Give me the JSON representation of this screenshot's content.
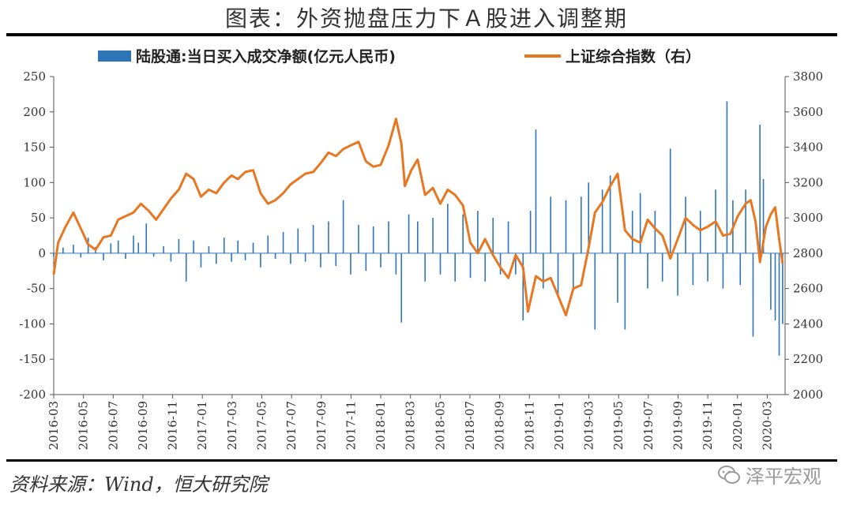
{
  "header": {
    "title": "图表：外资抛盘压力下Ａ股进入调整期"
  },
  "footer": {
    "source": "资料来源：Wind，恒大研究院",
    "watermark": "泽平宏观"
  },
  "chart_data": {
    "type": "bar",
    "title": "",
    "legend": {
      "placement": "top",
      "entries": [
        "陆股通:当日买入成交净额(亿元人民币)",
        "上证综合指数（右）"
      ]
    },
    "left_axis": {
      "ylim": [
        -200,
        250
      ],
      "ticks": [
        250,
        200,
        150,
        100,
        50,
        0,
        -50,
        -100,
        -150,
        -200
      ]
    },
    "right_axis": {
      "ylim": [
        2000,
        3800
      ],
      "ticks": [
        3800,
        3600,
        3400,
        3200,
        3000,
        2800,
        2600,
        2400,
        2200,
        2000
      ]
    },
    "x_ticks": [
      "2016-03",
      "2016-05",
      "2016-07",
      "2016-09",
      "2016-11",
      "2017-01",
      "2017-03",
      "2017-05",
      "2017-07",
      "2017-09",
      "2017-11",
      "2018-01",
      "2018-03",
      "2018-05",
      "2018-07",
      "2018-09",
      "2018-11",
      "2019-01",
      "2019-03",
      "2019-05",
      "2019-07",
      "2019-09",
      "2019-11",
      "2020-01",
      "2020-03"
    ],
    "series": [
      {
        "name": "陆股通:当日买入成交净额(亿元人民币)",
        "type": "bar",
        "axis": "left",
        "color": "#2e75b6",
        "points": [
          [
            "2016-03-01",
            -5
          ],
          [
            "2016-03-20",
            8
          ],
          [
            "2016-04-10",
            12
          ],
          [
            "2016-04-25",
            -6
          ],
          [
            "2016-05-10",
            22
          ],
          [
            "2016-05-25",
            9
          ],
          [
            "2016-06-10",
            -10
          ],
          [
            "2016-06-25",
            14
          ],
          [
            "2016-07-10",
            18
          ],
          [
            "2016-07-25",
            -8
          ],
          [
            "2016-08-10",
            25
          ],
          [
            "2016-08-20",
            15
          ],
          [
            "2016-09-05",
            42
          ],
          [
            "2016-09-20",
            -5
          ],
          [
            "2016-10-10",
            10
          ],
          [
            "2016-10-25",
            -12
          ],
          [
            "2016-11-10",
            20
          ],
          [
            "2016-11-25",
            -40
          ],
          [
            "2016-12-10",
            18
          ],
          [
            "2016-12-25",
            -20
          ],
          [
            "2017-01-10",
            10
          ],
          [
            "2017-01-25",
            -15
          ],
          [
            "2017-02-10",
            22
          ],
          [
            "2017-02-25",
            -12
          ],
          [
            "2017-03-10",
            18
          ],
          [
            "2017-03-25",
            -10
          ],
          [
            "2017-04-10",
            15
          ],
          [
            "2017-04-25",
            -20
          ],
          [
            "2017-05-10",
            25
          ],
          [
            "2017-05-25",
            -8
          ],
          [
            "2017-06-10",
            30
          ],
          [
            "2017-06-25",
            -15
          ],
          [
            "2017-07-10",
            35
          ],
          [
            "2017-07-25",
            -12
          ],
          [
            "2017-08-10",
            40
          ],
          [
            "2017-08-25",
            -20
          ],
          [
            "2017-09-10",
            45
          ],
          [
            "2017-09-25",
            -18
          ],
          [
            "2017-10-10",
            75
          ],
          [
            "2017-10-25",
            -30
          ],
          [
            "2017-11-10",
            40
          ],
          [
            "2017-11-25",
            -25
          ],
          [
            "2017-12-10",
            38
          ],
          [
            "2017-12-25",
            -20
          ],
          [
            "2018-01-10",
            45
          ],
          [
            "2018-01-25",
            -30
          ],
          [
            "2018-02-05",
            -98
          ],
          [
            "2018-02-20",
            55
          ],
          [
            "2018-03-10",
            45
          ],
          [
            "2018-03-25",
            -40
          ],
          [
            "2018-04-10",
            50
          ],
          [
            "2018-04-25",
            -30
          ],
          [
            "2018-05-10",
            70
          ],
          [
            "2018-05-25",
            -40
          ],
          [
            "2018-06-10",
            55
          ],
          [
            "2018-06-25",
            -35
          ],
          [
            "2018-07-10",
            60
          ],
          [
            "2018-07-25",
            -40
          ],
          [
            "2018-08-10",
            50
          ],
          [
            "2018-08-25",
            -30
          ],
          [
            "2018-09-10",
            45
          ],
          [
            "2018-09-25",
            -30
          ],
          [
            "2018-10-10",
            -95
          ],
          [
            "2018-10-25",
            60
          ],
          [
            "2018-11-05",
            175
          ],
          [
            "2018-11-20",
            -50
          ],
          [
            "2018-12-05",
            80
          ],
          [
            "2018-12-20",
            -60
          ],
          [
            "2019-01-05",
            75
          ],
          [
            "2019-01-20",
            -50
          ],
          [
            "2019-02-05",
            80
          ],
          [
            "2019-02-20",
            100
          ],
          [
            "2019-03-05",
            -108
          ],
          [
            "2019-03-20",
            90
          ],
          [
            "2019-04-05",
            110
          ],
          [
            "2019-04-20",
            -70
          ],
          [
            "2019-05-05",
            -108
          ],
          [
            "2019-05-20",
            60
          ],
          [
            "2019-06-05",
            85
          ],
          [
            "2019-06-20",
            -50
          ],
          [
            "2019-07-05",
            60
          ],
          [
            "2019-07-20",
            -40
          ],
          [
            "2019-08-05",
            148
          ],
          [
            "2019-08-20",
            -60
          ],
          [
            "2019-09-05",
            80
          ],
          [
            "2019-09-20",
            -45
          ],
          [
            "2019-10-05",
            60
          ],
          [
            "2019-10-20",
            -40
          ],
          [
            "2019-11-05",
            90
          ],
          [
            "2019-11-20",
            -50
          ],
          [
            "2019-11-28",
            215
          ],
          [
            "2019-12-10",
            75
          ],
          [
            "2019-12-25",
            -45
          ],
          [
            "2020-01-05",
            90
          ],
          [
            "2020-01-20",
            -118
          ],
          [
            "2020-02-03",
            182
          ],
          [
            "2020-02-10",
            105
          ],
          [
            "2020-02-25",
            -80
          ],
          [
            "2020-03-05",
            -95
          ],
          [
            "2020-03-13",
            -145
          ],
          [
            "2020-03-20",
            -100
          ]
        ]
      },
      {
        "name": "上证综合指数（右）",
        "type": "line",
        "axis": "right",
        "color": "#e87722",
        "points": [
          [
            "2016-03-01",
            2680
          ],
          [
            "2016-03-10",
            2860
          ],
          [
            "2016-03-25",
            2950
          ],
          [
            "2016-04-10",
            3030
          ],
          [
            "2016-04-25",
            2940
          ],
          [
            "2016-05-10",
            2850
          ],
          [
            "2016-05-25",
            2820
          ],
          [
            "2016-06-10",
            2890
          ],
          [
            "2016-06-25",
            2900
          ],
          [
            "2016-07-10",
            2990
          ],
          [
            "2016-07-25",
            3010
          ],
          [
            "2016-08-10",
            3030
          ],
          [
            "2016-08-25",
            3080
          ],
          [
            "2016-09-10",
            3040
          ],
          [
            "2016-09-25",
            2990
          ],
          [
            "2016-10-10",
            3050
          ],
          [
            "2016-10-25",
            3110
          ],
          [
            "2016-11-10",
            3160
          ],
          [
            "2016-11-25",
            3250
          ],
          [
            "2016-12-10",
            3220
          ],
          [
            "2016-12-25",
            3120
          ],
          [
            "2017-01-10",
            3160
          ],
          [
            "2017-01-25",
            3140
          ],
          [
            "2017-02-10",
            3200
          ],
          [
            "2017-02-25",
            3240
          ],
          [
            "2017-03-10",
            3220
          ],
          [
            "2017-03-25",
            3260
          ],
          [
            "2017-04-10",
            3270
          ],
          [
            "2017-04-25",
            3140
          ],
          [
            "2017-05-10",
            3080
          ],
          [
            "2017-05-25",
            3100
          ],
          [
            "2017-06-10",
            3140
          ],
          [
            "2017-06-25",
            3190
          ],
          [
            "2017-07-10",
            3220
          ],
          [
            "2017-07-25",
            3250
          ],
          [
            "2017-08-10",
            3260
          ],
          [
            "2017-08-25",
            3310
          ],
          [
            "2017-09-10",
            3370
          ],
          [
            "2017-09-25",
            3350
          ],
          [
            "2017-10-10",
            3390
          ],
          [
            "2017-10-25",
            3410
          ],
          [
            "2017-11-10",
            3430
          ],
          [
            "2017-11-25",
            3320
          ],
          [
            "2017-12-10",
            3290
          ],
          [
            "2017-12-25",
            3300
          ],
          [
            "2018-01-10",
            3410
          ],
          [
            "2018-01-25",
            3560
          ],
          [
            "2018-02-05",
            3420
          ],
          [
            "2018-02-12",
            3180
          ],
          [
            "2018-02-25",
            3270
          ],
          [
            "2018-03-10",
            3330
          ],
          [
            "2018-03-25",
            3130
          ],
          [
            "2018-04-10",
            3170
          ],
          [
            "2018-04-25",
            3080
          ],
          [
            "2018-05-10",
            3160
          ],
          [
            "2018-05-25",
            3130
          ],
          [
            "2018-06-10",
            3070
          ],
          [
            "2018-06-25",
            2860
          ],
          [
            "2018-07-10",
            2800
          ],
          [
            "2018-07-25",
            2880
          ],
          [
            "2018-08-10",
            2790
          ],
          [
            "2018-08-25",
            2720
          ],
          [
            "2018-09-10",
            2660
          ],
          [
            "2018-09-25",
            2790
          ],
          [
            "2018-10-10",
            2720
          ],
          [
            "2018-10-20",
            2470
          ],
          [
            "2018-11-05",
            2670
          ],
          [
            "2018-11-20",
            2640
          ],
          [
            "2018-12-05",
            2660
          ],
          [
            "2018-12-20",
            2560
          ],
          [
            "2019-01-05",
            2450
          ],
          [
            "2019-01-20",
            2600
          ],
          [
            "2019-02-05",
            2620
          ],
          [
            "2019-02-20",
            2830
          ],
          [
            "2019-03-05",
            3030
          ],
          [
            "2019-03-20",
            3090
          ],
          [
            "2019-04-05",
            3180
          ],
          [
            "2019-04-20",
            3250
          ],
          [
            "2019-05-05",
            2930
          ],
          [
            "2019-05-20",
            2880
          ],
          [
            "2019-06-05",
            2860
          ],
          [
            "2019-06-20",
            2990
          ],
          [
            "2019-07-05",
            2940
          ],
          [
            "2019-07-20",
            2900
          ],
          [
            "2019-08-05",
            2770
          ],
          [
            "2019-08-20",
            2880
          ],
          [
            "2019-09-05",
            3000
          ],
          [
            "2019-09-20",
            2960
          ],
          [
            "2019-10-05",
            2930
          ],
          [
            "2019-10-20",
            2950
          ],
          [
            "2019-11-05",
            2980
          ],
          [
            "2019-11-20",
            2900
          ],
          [
            "2019-12-05",
            2910
          ],
          [
            "2019-12-20",
            3010
          ],
          [
            "2020-01-05",
            3080
          ],
          [
            "2020-01-15",
            3100
          ],
          [
            "2020-01-25",
            2980
          ],
          [
            "2020-02-03",
            2750
          ],
          [
            "2020-02-15",
            2950
          ],
          [
            "2020-02-25",
            3020
          ],
          [
            "2020-03-05",
            3060
          ],
          [
            "2020-03-13",
            2880
          ],
          [
            "2020-03-20",
            2740
          ]
        ]
      }
    ]
  }
}
